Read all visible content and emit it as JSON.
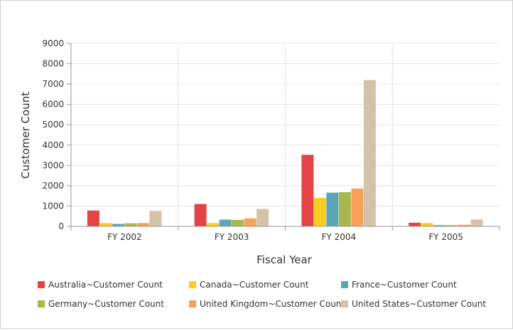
{
  "chart_data": {
    "type": "bar",
    "xlabel": "Fiscal Year",
    "ylabel": "Customer Count",
    "categories": [
      "FY 2002",
      "FY 2003",
      "FY 2004",
      "FY 2005"
    ],
    "ylim": [
      0,
      9000
    ],
    "yticks": [
      "0",
      "1000",
      "2000",
      "3000",
      "4000",
      "5000",
      "6000",
      "7000",
      "8000",
      "9000"
    ],
    "grid": true,
    "legend_position": "bottom",
    "series": [
      {
        "name": "Australia~Customer Count",
        "color": "#e34247",
        "values": [
          780,
          1100,
          3520,
          180
        ]
      },
      {
        "name": "Canada~Customer Count",
        "color": "#f9cc1d",
        "values": [
          160,
          160,
          1400,
          160
        ]
      },
      {
        "name": "France~Customer Count",
        "color": "#5aa6b5",
        "values": [
          120,
          330,
          1660,
          60
        ]
      },
      {
        "name": "Germany~Customer Count",
        "color": "#aab74c",
        "values": [
          150,
          320,
          1680,
          60
        ]
      },
      {
        "name": "United Kingdom~Customer Count",
        "color": "#f9a05a",
        "values": [
          160,
          390,
          1860,
          80
        ]
      },
      {
        "name": "United States~Customer Count",
        "color": "#d4c3a8",
        "values": [
          760,
          860,
          7200,
          340
        ]
      }
    ]
  }
}
